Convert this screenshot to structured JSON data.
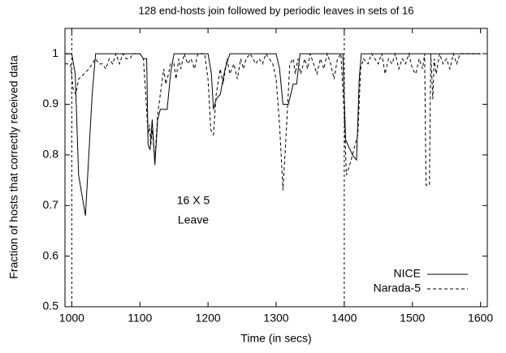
{
  "chart_data": {
    "type": "line",
    "title": "128 end-hosts join followed by periodic leaves in sets of 16",
    "x_label": "Time (in secs)",
    "y_label": "Fraction of hosts that correctly received data",
    "annotations": [
      "16 X 5",
      "Leave"
    ],
    "vlines": [
      1000,
      1400
    ],
    "xlim": [
      990,
      1610
    ],
    "ylim": [
      0.5,
      1.05
    ],
    "xticks": [
      1000,
      1100,
      1200,
      1300,
      1400,
      1500,
      1600
    ],
    "yticks": [
      0.5,
      0.6,
      0.7,
      0.8,
      0.9,
      1
    ],
    "legend": "lower right",
    "series": [
      {
        "name": "NICE",
        "color": "#000000",
        "dashed": false,
        "x": [
          990,
          1000,
          1005,
          1010,
          1020,
          1030,
          1035,
          1060,
          1100,
          1105,
          1110,
          1112,
          1115,
          1118,
          1122,
          1126,
          1130,
          1140,
          1145,
          1150,
          1200,
          1205,
          1208,
          1212,
          1218,
          1225,
          1232,
          1300,
          1305,
          1310,
          1318,
          1325,
          1330,
          1335,
          1398,
          1402,
          1412,
          1418,
          1422,
          1425,
          1600
        ],
        "values": [
          1.0,
          1.0,
          0.96,
          0.76,
          0.68,
          0.92,
          1.0,
          1.0,
          1.0,
          0.99,
          0.99,
          0.82,
          0.81,
          0.87,
          0.78,
          0.87,
          0.89,
          0.89,
          0.96,
          1.0,
          1.0,
          0.96,
          0.89,
          0.91,
          0.92,
          0.97,
          1.0,
          1.0,
          0.97,
          0.9,
          0.9,
          0.94,
          0.94,
          1.0,
          1.0,
          0.83,
          0.8,
          0.79,
          0.95,
          1.0,
          1.0
        ]
      },
      {
        "name": "Narada-5",
        "color": "#000000",
        "dashed": true,
        "x": [
          990,
          998,
          1002,
          1006,
          1010,
          1018,
          1025,
          1030,
          1035,
          1040,
          1045,
          1050,
          1055,
          1060,
          1065,
          1070,
          1075,
          1080,
          1085,
          1090,
          1100,
          1105,
          1108,
          1112,
          1114,
          1116,
          1118,
          1122,
          1126,
          1130,
          1135,
          1138,
          1142,
          1145,
          1150,
          1153,
          1157,
          1160,
          1165,
          1170,
          1175,
          1180,
          1185,
          1195,
          1200,
          1204,
          1208,
          1212,
          1218,
          1222,
          1228,
          1232,
          1238,
          1243,
          1248,
          1252,
          1256,
          1262,
          1270,
          1275,
          1280,
          1285,
          1295,
          1300,
          1305,
          1310,
          1315,
          1320,
          1325,
          1328,
          1332,
          1336,
          1342,
          1346,
          1350,
          1355,
          1360,
          1365,
          1370,
          1375,
          1380,
          1385,
          1390,
          1395,
          1400,
          1403,
          1408,
          1414,
          1420,
          1424,
          1428,
          1435,
          1440,
          1445,
          1450,
          1455,
          1460,
          1465,
          1470,
          1475,
          1480,
          1485,
          1490,
          1495,
          1500,
          1505,
          1510,
          1515,
          1518,
          1520,
          1525,
          1527,
          1530,
          1532,
          1535,
          1540,
          1545,
          1550,
          1555,
          1560,
          1565,
          1570,
          1600
        ],
        "values": [
          0.98,
          0.98,
          0.93,
          0.92,
          0.95,
          0.96,
          0.97,
          0.98,
          0.99,
          0.98,
          0.98,
          0.97,
          0.99,
          0.98,
          1.0,
          0.98,
          1.0,
          0.99,
          0.99,
          1.0,
          1.0,
          0.99,
          0.93,
          0.84,
          0.86,
          0.82,
          0.85,
          0.79,
          0.88,
          0.92,
          0.97,
          0.94,
          0.96,
          0.98,
          0.98,
          0.95,
          0.99,
          0.97,
          1.0,
          0.98,
          0.99,
          0.97,
          1.0,
          1.0,
          0.95,
          0.85,
          0.84,
          0.92,
          0.97,
          0.94,
          0.99,
          0.96,
          0.98,
          0.95,
          0.99,
          0.97,
          0.99,
          1.0,
          0.98,
          0.99,
          0.98,
          1.0,
          0.98,
          0.95,
          0.86,
          0.73,
          0.85,
          0.98,
          0.99,
          0.96,
          0.99,
          0.96,
          0.99,
          0.97,
          1.0,
          0.98,
          0.96,
          0.99,
          0.97,
          1.0,
          0.98,
          0.95,
          0.99,
          1.0,
          0.88,
          0.76,
          0.78,
          0.81,
          0.84,
          0.97,
          0.99,
          0.98,
          1.0,
          0.99,
          0.98,
          1.0,
          0.96,
          0.99,
          0.98,
          1.0,
          0.97,
          0.99,
          0.98,
          1.0,
          0.97,
          0.96,
          0.99,
          0.97,
          1.0,
          0.74,
          0.74,
          1.0,
          0.91,
          0.99,
          0.96,
          1.0,
          0.98,
          0.99,
          0.97,
          1.0,
          0.98,
          1.0,
          1.0
        ]
      }
    ]
  }
}
